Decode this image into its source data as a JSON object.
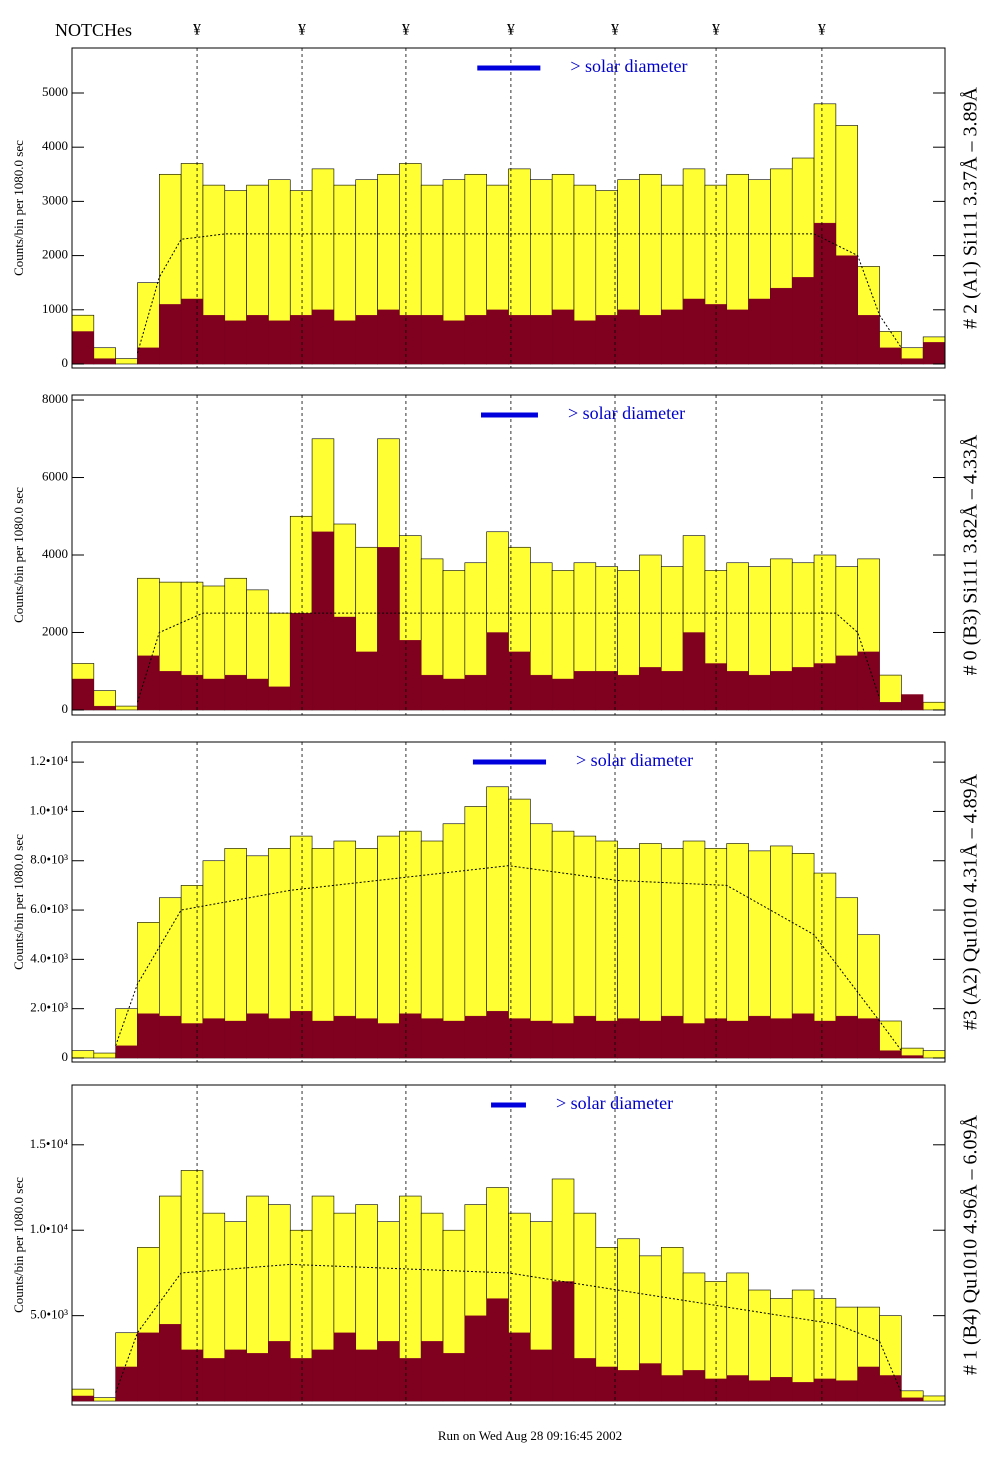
{
  "notches": {
    "label": "NOTCHes",
    "marker": "¥",
    "positions": [
      5.73,
      10.54,
      15.3,
      20.11,
      24.88,
      29.51,
      34.36
    ]
  },
  "footer": "Run on Wed Aug 28 09:16:45 2002",
  "chart_data": [
    {
      "type": "histogram",
      "y_label": "Counts/bin per   1080.0 sec",
      "side_label": "# 2 (A1) Si111  3.37Å – 3.89Å",
      "legend_text": "> solar diameter",
      "solar_bar": [
        18.57,
        21.46
      ],
      "bins": [
        0,
        1,
        2,
        3,
        4,
        5,
        6,
        7,
        8,
        9,
        10,
        11,
        12,
        13,
        14,
        15,
        16,
        17,
        18,
        19,
        20,
        21,
        22,
        23,
        24,
        25,
        26,
        27,
        28,
        29,
        30,
        31,
        32,
        33,
        34,
        35,
        36,
        37,
        38,
        39,
        40
      ],
      "xlim": [
        0,
        40
      ],
      "ylim": [
        -74,
        5830
      ],
      "yticks": [
        0,
        1000,
        2000,
        3000,
        4000,
        5000
      ],
      "series": [
        {
          "color": "#ffff33",
          "values": [
            900,
            300,
            100,
            1500,
            3500,
            3700,
            3300,
            3200,
            3300,
            3400,
            3200,
            3600,
            3300,
            3400,
            3500,
            3700,
            3300,
            3400,
            3500,
            3300,
            3600,
            3400,
            3500,
            3300,
            3200,
            3400,
            3500,
            3300,
            3600,
            3300,
            3500,
            3400,
            3600,
            3800,
            4800,
            4400,
            1800,
            600,
            300,
            500
          ]
        },
        {
          "color": "#800020",
          "values": [
            600,
            100,
            0,
            300,
            1100,
            1200,
            900,
            800,
            900,
            800,
            900,
            1000,
            800,
            900,
            1000,
            900,
            900,
            800,
            900,
            1000,
            900,
            900,
            1000,
            800,
            900,
            1000,
            900,
            1000,
            1200,
            1100,
            1000,
            1200,
            1400,
            1600,
            2600,
            2000,
            900,
            300,
            100,
            400
          ]
        }
      ],
      "profile": {
        "x": [
          3,
          4,
          5,
          7,
          20,
          34,
          36,
          37,
          38
        ],
        "values": [
          200,
          1600,
          2300,
          2400,
          2400,
          2400,
          2000,
          900,
          300
        ]
      }
    },
    {
      "type": "histogram",
      "y_label": "Counts/bin per   1080.0 sec",
      "side_label": "# 0 (B3) Si111  3.82Å – 4.33Å",
      "legend_text": "> solar diameter",
      "solar_bar": [
        18.74,
        21.35
      ],
      "bins": [
        0,
        1,
        2,
        3,
        4,
        5,
        6,
        7,
        8,
        9,
        10,
        11,
        12,
        13,
        14,
        15,
        16,
        17,
        18,
        19,
        20,
        21,
        22,
        23,
        24,
        25,
        26,
        27,
        28,
        29,
        30,
        31,
        32,
        33,
        34,
        35,
        36,
        37,
        38,
        39,
        40
      ],
      "xlim": [
        0,
        40
      ],
      "ylim": [
        -130,
        8130
      ],
      "yticks": [
        0,
        2000,
        4000,
        6000,
        8000
      ],
      "series": [
        {
          "color": "#ffff33",
          "values": [
            1200,
            500,
            100,
            3400,
            3300,
            3300,
            3200,
            3400,
            3100,
            2500,
            5000,
            7000,
            4800,
            4200,
            7000,
            4500,
            3900,
            3600,
            3800,
            4600,
            4200,
            3800,
            3600,
            3800,
            3700,
            3600,
            4000,
            3700,
            4500,
            3600,
            3800,
            3700,
            3900,
            3800,
            4000,
            3700,
            3900,
            900,
            200,
            200
          ]
        },
        {
          "color": "#800020",
          "values": [
            800,
            100,
            0,
            1400,
            1000,
            900,
            800,
            900,
            800,
            600,
            2500,
            4600,
            2400,
            1500,
            4200,
            1800,
            900,
            800,
            900,
            2000,
            1500,
            900,
            800,
            1000,
            1000,
            900,
            1100,
            1000,
            2000,
            1200,
            1000,
            900,
            1000,
            1100,
            1200,
            1400,
            1500,
            200,
            400,
            0
          ]
        }
      ],
      "profile": {
        "x": [
          3,
          4,
          6,
          20,
          35,
          36,
          37
        ],
        "values": [
          200,
          2000,
          2500,
          2500,
          2500,
          2000,
          300
        ]
      }
    },
    {
      "type": "histogram",
      "y_label": "Counts/bin per   1080.0 sec",
      "side_label": "#3 (A2) Qu1010  4.31Å – 4.89Å",
      "legend_text": "> solar diameter",
      "solar_bar": [
        18.37,
        21.72
      ],
      "bins": [
        0,
        1,
        2,
        3,
        4,
        5,
        6,
        7,
        8,
        9,
        10,
        11,
        12,
        13,
        14,
        15,
        16,
        17,
        18,
        19,
        20,
        21,
        22,
        23,
        24,
        25,
        26,
        27,
        28,
        29,
        30,
        31,
        32,
        33,
        34,
        35,
        36,
        37,
        38,
        39,
        40
      ],
      "xlim": [
        0,
        40
      ],
      "ylim": [
        -163,
        12816
      ],
      "yticks": [
        0,
        {
          "value": 2000,
          "label": "2.0•10³"
        },
        {
          "value": 4000,
          "label": "4.0•10³"
        },
        {
          "value": 6000,
          "label": "6.0•10³"
        },
        {
          "value": 8000,
          "label": "8.0•10³"
        },
        {
          "value": 10000,
          "label": "1.0•10⁴"
        },
        {
          "value": 12000,
          "label": "1.2•10⁴"
        }
      ],
      "series": [
        {
          "color": "#ffff33",
          "values": [
            300,
            200,
            2000,
            5500,
            6500,
            7000,
            8000,
            8500,
            8200,
            8500,
            9000,
            8500,
            8800,
            8500,
            9000,
            9200,
            8800,
            9500,
            10200,
            11000,
            10500,
            9500,
            9200,
            9000,
            8800,
            8500,
            8700,
            8500,
            8800,
            8500,
            8700,
            8400,
            8600,
            8300,
            7500,
            6500,
            5000,
            1500,
            400,
            300
          ]
        },
        {
          "color": "#800020",
          "values": [
            0,
            0,
            500,
            1800,
            1700,
            1400,
            1600,
            1500,
            1800,
            1600,
            1900,
            1500,
            1700,
            1600,
            1400,
            1800,
            1600,
            1500,
            1700,
            1900,
            1600,
            1500,
            1400,
            1700,
            1500,
            1600,
            1500,
            1700,
            1400,
            1600,
            1500,
            1700,
            1600,
            1800,
            1500,
            1700,
            1600,
            300,
            100,
            0
          ]
        }
      ],
      "profile": {
        "x": [
          2,
          3,
          5,
          10,
          20,
          25,
          30,
          34,
          37,
          38
        ],
        "values": [
          500,
          3000,
          6000,
          6800,
          7800,
          7200,
          7000,
          5000,
          1500,
          300
        ]
      }
    },
    {
      "type": "histogram",
      "y_label": "Counts/bin per   1080.0 sec",
      "side_label": "# 1 (B4) Qu1010 4.96Å – 6.09Å",
      "legend_text": "> solar diameter",
      "solar_bar": [
        19.2,
        20.8
      ],
      "bins": [
        0,
        1,
        2,
        3,
        4,
        5,
        6,
        7,
        8,
        9,
        10,
        11,
        12,
        13,
        14,
        15,
        16,
        17,
        18,
        19,
        20,
        21,
        22,
        23,
        24,
        25,
        26,
        27,
        28,
        29,
        30,
        31,
        32,
        33,
        34,
        35,
        36,
        37,
        38,
        39,
        40
      ],
      "xlim": [
        0,
        40
      ],
      "ylim": [
        -230,
        18500
      ],
      "yticks": [
        {
          "value": 5000,
          "label": "5.0•10³"
        },
        {
          "value": 10000,
          "label": "1.0•10⁴"
        },
        {
          "value": 15000,
          "label": "1.5•10⁴"
        }
      ],
      "series": [
        {
          "color": "#ffff33",
          "values": [
            700,
            200,
            4000,
            9000,
            12000,
            13500,
            11000,
            10500,
            12000,
            11500,
            10000,
            12000,
            11000,
            11500,
            10500,
            12000,
            11000,
            10000,
            11500,
            12500,
            11000,
            10500,
            13000,
            11000,
            9000,
            9500,
            8500,
            9000,
            7500,
            7000,
            7500,
            6500,
            6000,
            6500,
            6000,
            5500,
            5500,
            5000,
            600,
            300
          ]
        },
        {
          "color": "#800020",
          "values": [
            300,
            0,
            2000,
            4000,
            4500,
            3000,
            2500,
            3000,
            2800,
            3500,
            2500,
            3000,
            4000,
            3000,
            3500,
            2500,
            3500,
            2800,
            5000,
            6000,
            4000,
            3000,
            7000,
            2500,
            2000,
            1800,
            2200,
            1500,
            1800,
            1300,
            1500,
            1200,
            1400,
            1100,
            1300,
            1200,
            2000,
            1500,
            200,
            0
          ]
        }
      ],
      "profile": {
        "x": [
          2,
          3,
          5,
          10,
          20,
          30,
          35,
          37,
          38
        ],
        "values": [
          500,
          4000,
          7500,
          8000,
          7500,
          5500,
          4500,
          3500,
          500
        ]
      }
    }
  ]
}
